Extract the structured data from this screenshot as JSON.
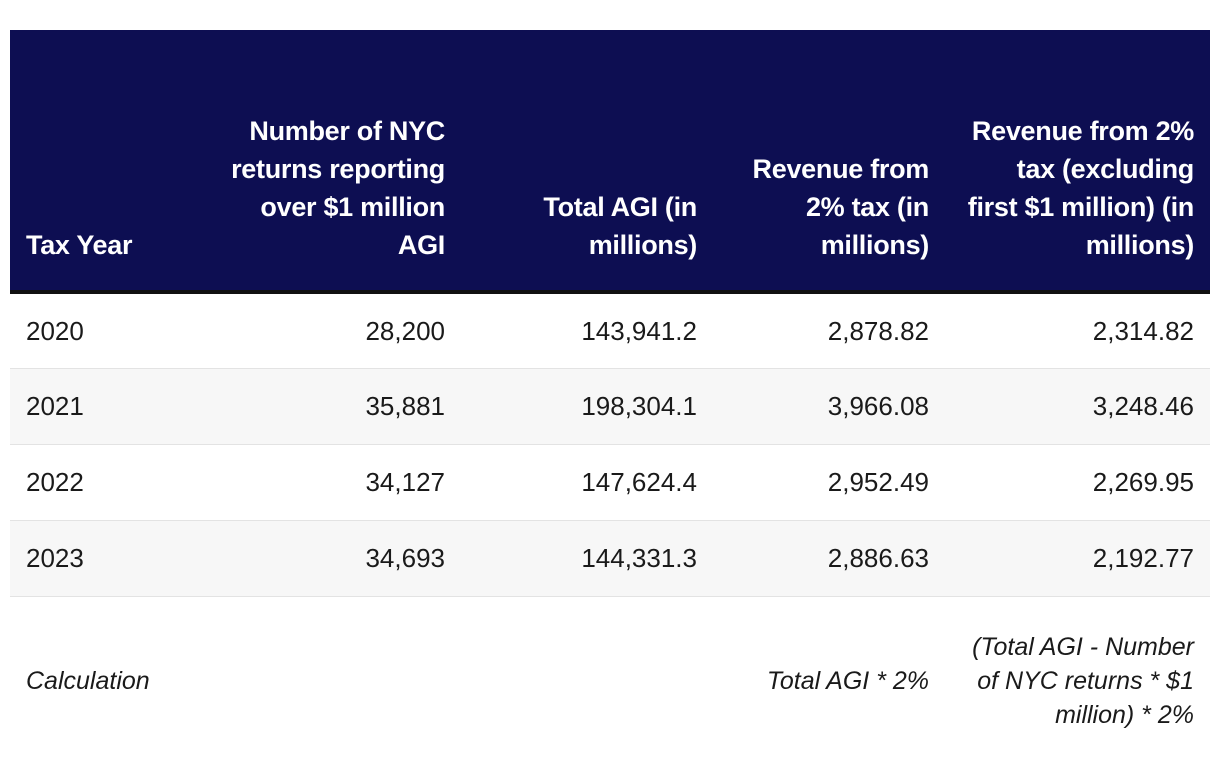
{
  "table": {
    "headers": [
      "Tax Year",
      "Number of NYC returns reporting over $1 million AGI",
      "Total AGI (in millions)",
      "Revenue from 2% tax (in millions)",
      "Revenue from 2% tax (excluding first $1 million) (in millions)"
    ],
    "rows": [
      [
        "2020",
        "28,200",
        "143,941.2",
        "2,878.82",
        "2,314.82"
      ],
      [
        "2021",
        "35,881",
        "198,304.1",
        "3,966.08",
        "3,248.46"
      ],
      [
        "2022",
        "34,127",
        "147,624.4",
        "2,952.49",
        "2,269.95"
      ],
      [
        "2023",
        "34,693",
        "144,331.3",
        "2,886.63",
        "2,192.77"
      ]
    ],
    "calculation_row": [
      "Calculation",
      "",
      "",
      "Total AGI * 2%",
      "(Total AGI - Number of NYC returns * $1 million) * 2%"
    ]
  },
  "colors": {
    "header_background": "#0d0e52",
    "header_text": "#ffffff",
    "alt_row_background": "#f7f7f7"
  }
}
